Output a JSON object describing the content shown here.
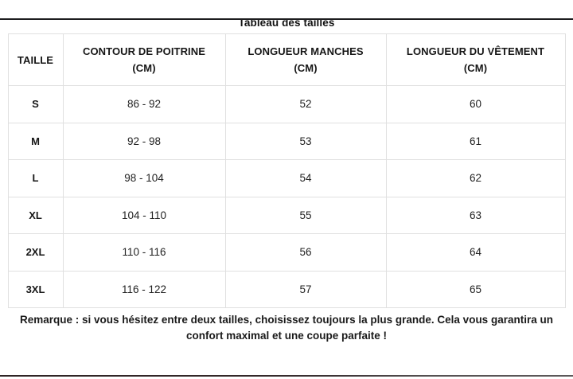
{
  "title": "Tableau des tailles",
  "table": {
    "columns": [
      {
        "label": "TAILLE",
        "sub": ""
      },
      {
        "label": "CONTOUR DE POITRINE",
        "sub": "(CM)"
      },
      {
        "label": "LONGUEUR MANCHES",
        "sub": "(CM)"
      },
      {
        "label": "LONGUEUR DU VÊTEMENT",
        "sub": "(CM)"
      }
    ],
    "rows": [
      [
        "S",
        "86 - 92",
        "52",
        "60"
      ],
      [
        "M",
        "92 - 98",
        "53",
        "61"
      ],
      [
        "L",
        "98 - 104",
        "54",
        "62"
      ],
      [
        "XL",
        "104 - 110",
        "55",
        "63"
      ],
      [
        "2XL",
        "110 - 116",
        "56",
        "64"
      ],
      [
        "3XL",
        "116 - 122",
        "57",
        "65"
      ]
    ]
  },
  "note": "Remarque : si vous hésitez entre deux tailles, choisissez toujours la plus grande. Cela vous garantira un confort maximal et une coupe parfaite !",
  "colors": {
    "table_border": "#e0e0e0",
    "text": "#1f1f1f",
    "top_rule": "#1d1d1f",
    "bottom_strip": "#342829"
  }
}
